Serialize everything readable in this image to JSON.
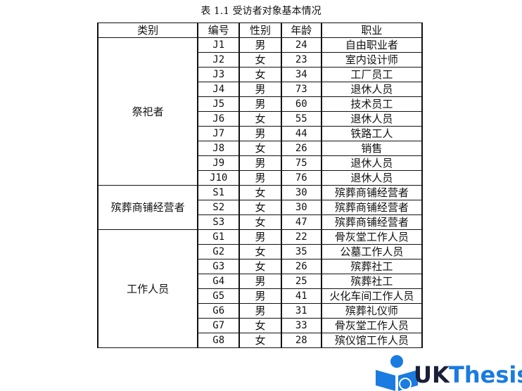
{
  "title": "表 1.1 受访者对象基本情况",
  "headers": [
    "类别",
    "编号",
    "性别",
    "年龄",
    "职业"
  ],
  "groups": [
    {
      "category": "祭祀者",
      "rows": [
        [
          "J1",
          "男",
          "24",
          "自由职业者"
        ],
        [
          "J2",
          "女",
          "23",
          "室内设计师"
        ],
        [
          "J3",
          "女",
          "34",
          "工厂员工"
        ],
        [
          "J4",
          "男",
          "73",
          "退休人员"
        ],
        [
          "J5",
          "男",
          "60",
          "技术员工"
        ],
        [
          "J6",
          "女",
          "55",
          "退休人员"
        ],
        [
          "J7",
          "男",
          "44",
          "铁路工人"
        ],
        [
          "J8",
          "女",
          "26",
          "销售"
        ],
        [
          "J9",
          "男",
          "75",
          "退休人员"
        ],
        [
          "J10",
          "男",
          "76",
          "退休人员"
        ]
      ]
    },
    {
      "category": "殡葬商铺经营者",
      "rows": [
        [
          "S1",
          "女",
          "30",
          "殡葬商铺经营者"
        ],
        [
          "S2",
          "女",
          "30",
          "殡葬商铺经营者"
        ],
        [
          "S3",
          "女",
          "47",
          "殡葬商铺经营者"
        ]
      ]
    },
    {
      "category": "工作人员",
      "rows": [
        [
          "G1",
          "男",
          "22",
          "骨灰堂工作人员"
        ],
        [
          "G2",
          "女",
          "35",
          "公墓工作人员"
        ],
        [
          "G3",
          "女",
          "26",
          "殡葬社工"
        ],
        [
          "G4",
          "男",
          "25",
          "殡葬社工"
        ],
        [
          "G5",
          "男",
          "41",
          "火化车间工作人员"
        ],
        [
          "G6",
          "男",
          "31",
          "殡葬礼仪师"
        ],
        [
          "G7",
          "女",
          "33",
          "骨灰堂工作人员"
        ],
        [
          "G8",
          "女",
          "28",
          "殡仪馆工作人员"
        ]
      ]
    }
  ],
  "watermark": {
    "text": "UKThesis",
    "color_blue": "#1a7be0",
    "color_dark": "#1b1f3a"
  }
}
